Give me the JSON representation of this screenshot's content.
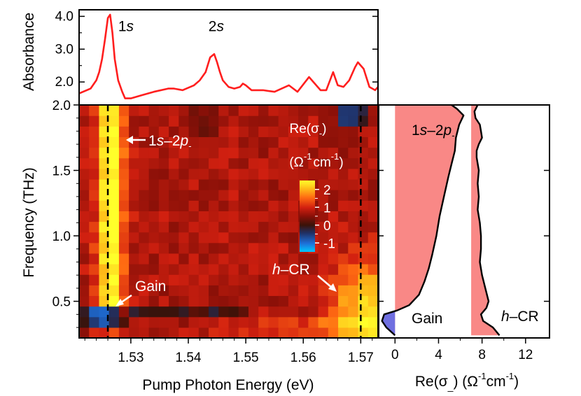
{
  "chart_data": [
    {
      "panel": "top",
      "type": "line",
      "ylabel": "Absorbance",
      "xlim": [
        1.521,
        1.573
      ],
      "ylim": [
        1.3,
        4.2
      ],
      "yticks": [
        {
          "v": 2.0,
          "label": "2.0"
        },
        {
          "v": 3.0,
          "label": "3.0"
        },
        {
          "v": 4.0,
          "label": "4.0"
        }
      ],
      "color": "#ff1e1e",
      "x": [
        1.521,
        1.523,
        1.524,
        1.5245,
        1.525,
        1.5255,
        1.526,
        1.5264,
        1.5268,
        1.5272,
        1.5278,
        1.5285,
        1.529,
        1.53,
        1.532,
        1.534,
        1.5365,
        1.5375,
        1.539,
        1.541,
        1.542,
        1.543,
        1.5438,
        1.5445,
        1.545,
        1.5455,
        1.546,
        1.547,
        1.548,
        1.549,
        1.5495,
        1.55,
        1.551,
        1.553,
        1.555,
        1.5575,
        1.559,
        1.561,
        1.562,
        1.563,
        1.564,
        1.5652,
        1.566,
        1.567,
        1.568,
        1.569,
        1.5695,
        1.5705,
        1.5715,
        1.5725,
        1.573
      ],
      "y": [
        1.65,
        1.8,
        2.05,
        2.3,
        2.7,
        3.3,
        3.95,
        4.05,
        3.5,
        2.7,
        2.05,
        1.7,
        1.5,
        1.5,
        1.6,
        1.7,
        1.8,
        1.8,
        1.75,
        1.9,
        2.05,
        2.3,
        2.75,
        2.85,
        2.6,
        2.3,
        2.05,
        1.85,
        1.8,
        1.85,
        1.95,
        1.9,
        1.75,
        1.75,
        1.7,
        1.9,
        1.7,
        2.15,
        1.95,
        1.75,
        1.75,
        2.3,
        1.9,
        1.85,
        2.05,
        2.45,
        2.6,
        2.4,
        1.85,
        1.75,
        1.85
      ],
      "annotations": [
        {
          "text_main": "1",
          "text_ital": "s",
          "x": 1.5278,
          "y": 3.55
        },
        {
          "text_main": "2",
          "text_ital": "s",
          "x": 1.5435,
          "y": 3.55
        }
      ]
    },
    {
      "panel": "main",
      "type": "heatmap",
      "xlabel": "Pump Photon Energy (eV)",
      "ylabel": "Frequency (THz)",
      "xlim": [
        1.521,
        1.573
      ],
      "ylim": [
        0.22,
        2.0
      ],
      "xticks": [
        {
          "v": 1.53,
          "label": "1.53"
        },
        {
          "v": 1.54,
          "label": "1.54"
        },
        {
          "v": 1.55,
          "label": "1.55"
        },
        {
          "v": 1.56,
          "label": "1.56"
        },
        {
          "v": 1.57,
          "label": "1.57"
        }
      ],
      "yticks": [
        {
          "v": 0.5,
          "label": "0.5"
        },
        {
          "v": 1.0,
          "label": "1.0"
        },
        {
          "v": 1.5,
          "label": "1.5"
        },
        {
          "v": 2.0,
          "label": "2.0"
        }
      ],
      "vlines": [
        1.526,
        1.57
      ],
      "colorbar": {
        "title": "Re(σ)",
        "title_main": "Re(σ",
        "title_sub": "-",
        "title_close": ")",
        "units_text": "(Ω  cm  )",
        "units_parts": [
          "(Ω",
          "-1",
          "cm",
          "-1",
          ")"
        ],
        "ticks": [
          {
            "v": 2,
            "label": "2"
          },
          {
            "v": 1,
            "label": "1"
          },
          {
            "v": 0,
            "label": "0"
          },
          {
            "v": -1,
            "label": "-1"
          }
        ],
        "range": [
          -1.5,
          2.5
        ]
      },
      "annotations": [
        {
          "id": "label-1s-2p",
          "parts": [
            "1",
            "s",
            "–2",
            "p",
            "-"
          ]
        },
        {
          "id": "label-gain",
          "text": "Gain"
        },
        {
          "id": "label-hcr",
          "parts": [
            "h",
            "–CR"
          ]
        }
      ]
    },
    {
      "panel": "right",
      "type": "area",
      "xlabel": "Re(σ_)  (Ω  cm  )",
      "xlabel_parts": [
        "Re(σ",
        "_",
        ")  (Ω",
        "-1",
        "cm",
        "-1",
        ")"
      ],
      "xlim": [
        -1.5,
        14.2
      ],
      "ylim": [
        0.22,
        2.0
      ],
      "xticks": [
        {
          "v": 0,
          "label": "0"
        },
        {
          "v": 4,
          "label": "4"
        },
        {
          "v": 8,
          "label": "8"
        },
        {
          "v": 12,
          "label": "12"
        }
      ],
      "series": [
        {
          "name": "1s–2p-",
          "baseline": 0,
          "freq": [
            0.24,
            0.3,
            0.35,
            0.4,
            0.43,
            0.47,
            0.55,
            0.65,
            0.75,
            0.85,
            1.0,
            1.15,
            1.3,
            1.45,
            1.55,
            1.65,
            1.75,
            1.85,
            1.92,
            1.97,
            2.0
          ],
          "values": [
            0.0,
            -0.8,
            -1.2,
            -1.0,
            0.2,
            1.3,
            2.2,
            2.7,
            3.1,
            3.4,
            3.8,
            4.1,
            4.5,
            4.9,
            5.2,
            5.5,
            5.6,
            5.9,
            6.3,
            5.7,
            5.2
          ]
        },
        {
          "name": "h–CR",
          "baseline": 7.0,
          "freq": [
            0.24,
            0.3,
            0.35,
            0.4,
            0.45,
            0.5,
            0.6,
            0.7,
            0.8,
            0.9,
            1.0,
            1.1,
            1.2,
            1.3,
            1.4,
            1.5,
            1.6,
            1.65,
            1.7,
            1.75,
            1.8,
            1.85,
            1.9,
            1.95,
            2.0
          ],
          "values": [
            9.6,
            9.0,
            8.1,
            7.9,
            8.4,
            8.6,
            8.3,
            8.0,
            7.8,
            7.9,
            7.9,
            7.8,
            7.6,
            7.7,
            7.6,
            7.7,
            7.5,
            7.5,
            7.7,
            8.0,
            7.9,
            7.8,
            7.4,
            7.3,
            7.6
          ]
        }
      ],
      "annotations": [
        {
          "id": "right-label-1s2p",
          "parts": [
            "1",
            "s",
            "–2",
            "p",
            "-"
          ]
        },
        {
          "id": "right-label-gain",
          "text": "Gain"
        },
        {
          "id": "right-label-hcr",
          "parts": [
            "h",
            "–CR"
          ]
        }
      ]
    }
  ]
}
